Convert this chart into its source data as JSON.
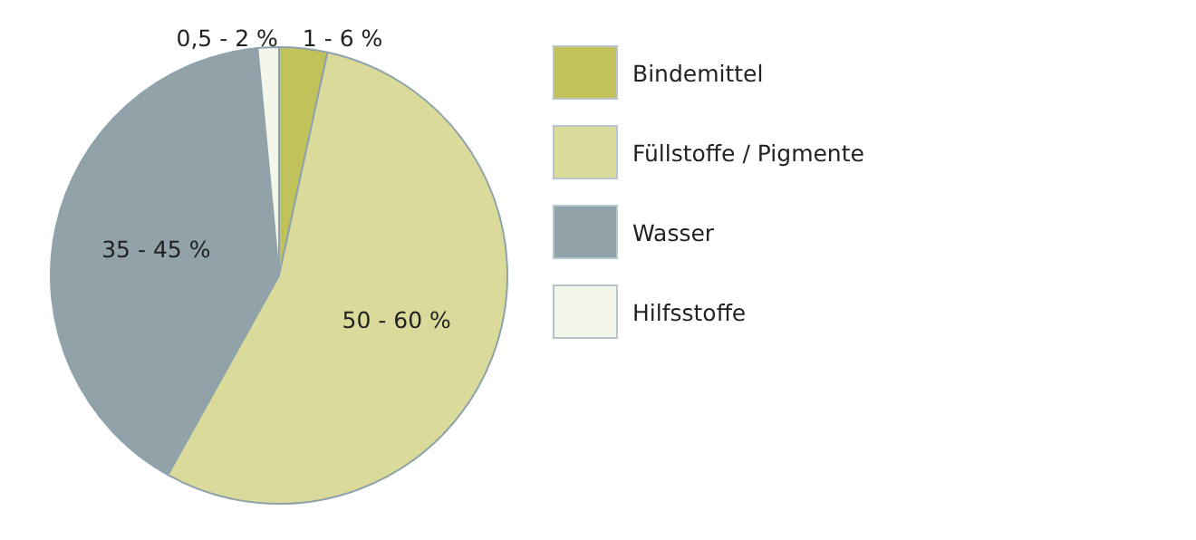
{
  "chart_data": {
    "type": "pie",
    "categories": [
      "Bindemittel",
      "Füllstoffe / Pigmente",
      "Wasser",
      "Hilfsstoffe"
    ],
    "values": [
      3.4,
      54.7,
      40.4,
      1.5
    ],
    "annotations": [
      {
        "text": "1 - 6 %",
        "x": "Bindemittel"
      },
      {
        "text": "50 - 60 %",
        "x": "Füllstoffe / Pigmente"
      },
      {
        "text": "35 - 45 %",
        "x": "Wasser"
      },
      {
        "text": "0,5 - 2 %",
        "x": "Hilfsstoffe"
      }
    ],
    "colors": [
      "#c1c35a",
      "#dada9a",
      "#91a2a9",
      "#f5f6ea"
    ],
    "legend": "right"
  }
}
